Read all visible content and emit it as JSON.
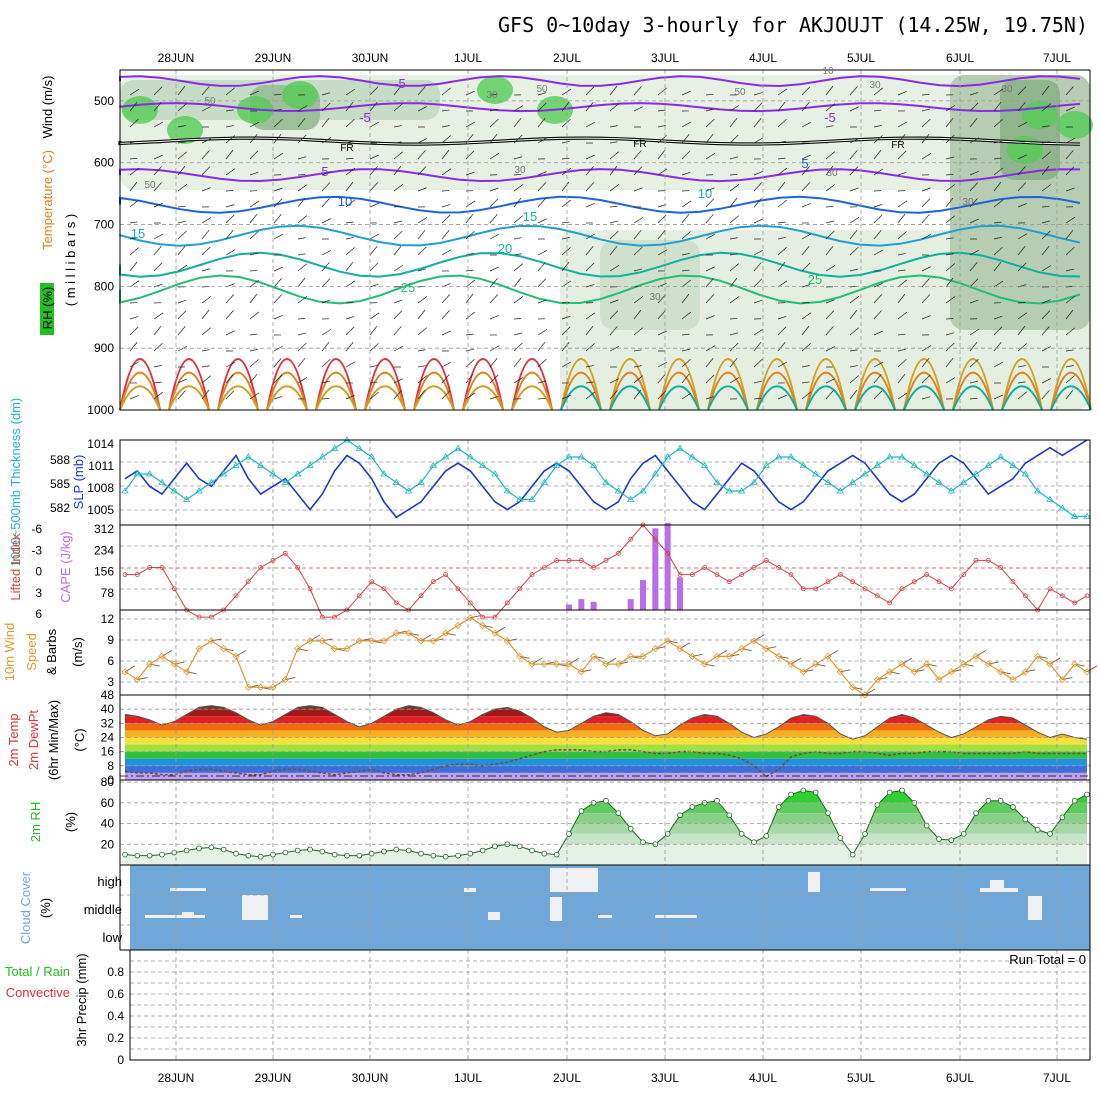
{
  "title": "GFS 0~10day 3-hourly for AKJOUJT (14.25W, 19.75N)",
  "dates": [
    "28JUN",
    "29JUN",
    "30JUN",
    "1JUL",
    "2JUL",
    "3JUL",
    "4JUL",
    "5JUL",
    "6JUL",
    "7JUL"
  ],
  "colors": {
    "temp_cold": "#8a2be2",
    "temp_blue": "#1e64d8",
    "temp_cyan": "#20a0d0",
    "temp_teal": "#10b0a0",
    "temp_green": "#20c070",
    "temp_orange": "#e08020",
    "temp_gold": "#d4a020",
    "temp_red": "#e03040",
    "slp": "#1a3acc",
    "thickness": "#20b8c0",
    "lifted": "#d94040",
    "cape": "#b86ee8",
    "wind": "#e09830",
    "rh": "#20c020",
    "cloud": "#6fa8d8",
    "precip_total": "#20c020",
    "precip_conv": "#e03030"
  },
  "chart_data": [
    {
      "type": "contour",
      "panel": "upper-air",
      "ylabel_parts": [
        "RH (%)",
        "Temperature (°C)",
        "Wind (m/s)",
        "( m i l l i b a r s )"
      ],
      "y_ticks": [
        "500",
        "600",
        "700",
        "800",
        "900",
        "1000"
      ],
      "ylim": [
        450,
        1000
      ],
      "temp_labels": [
        "-5",
        "-5",
        "-5",
        "5",
        "5",
        "10",
        "10",
        "15",
        "15",
        "20",
        "25",
        "25"
      ],
      "freezing_labels": [
        "FR",
        "FR",
        "FR"
      ],
      "rh_labels": [
        "50",
        "50",
        "30",
        "30",
        "50",
        "30",
        "30",
        "10",
        "30",
        "30",
        "50",
        "30"
      ],
      "isotherms": [
        {
          "label": "-5",
          "hpa": 510
        },
        {
          "label": "5",
          "hpa": 620
        },
        {
          "label": "10",
          "hpa": 668
        },
        {
          "label": "15",
          "hpa": 718
        },
        {
          "label": "20",
          "hpa": 765
        },
        {
          "label": "25",
          "hpa": 805
        }
      ],
      "freezing_level_hpa": 565
    },
    {
      "type": "line",
      "panel": "slp-thickness",
      "series": [
        {
          "name": "SLP (mb)",
          "axis": "left",
          "ticks": [
            "1014",
            "1011",
            "1008",
            "1005"
          ],
          "ylim": [
            1003,
            1014
          ],
          "values": [
            1009,
            1010,
            1008,
            1007,
            1009,
            1011,
            1009,
            1008,
            1010,
            1012,
            1009,
            1007,
            1008,
            1009,
            1007,
            1005,
            1007,
            1010,
            1012,
            1011,
            1009,
            1006,
            1004,
            1005,
            1006,
            1008,
            1010,
            1011,
            1010,
            1008,
            1006,
            1005,
            1006,
            1008,
            1010,
            1011,
            1010,
            1008,
            1006,
            1005,
            1006,
            1009,
            1011,
            1012,
            1010,
            1008,
            1006,
            1005,
            1007,
            1009,
            1011,
            1010,
            1008,
            1006,
            1005,
            1006,
            1008,
            1010,
            1011,
            1012,
            1011,
            1009,
            1007,
            1006,
            1007,
            1009,
            1011,
            1012,
            1011,
            1009,
            1007,
            1008,
            1009,
            1011,
            1012,
            1013,
            1012,
            1013,
            1014
          ]
        },
        {
          "name": "1000~500mb Thickness (dm)",
          "axis": "right",
          "ticks": [
            "588",
            "585",
            "582"
          ],
          "ylim": [
            580,
            590
          ],
          "values": [
            584,
            586,
            586,
            585,
            584,
            583,
            584,
            585,
            586,
            587,
            588,
            587,
            586,
            585,
            586,
            587,
            588,
            589,
            590,
            589,
            588,
            586,
            585,
            584,
            585,
            587,
            588,
            589,
            588,
            587,
            586,
            584,
            583,
            583,
            585,
            587,
            588,
            588,
            587,
            585,
            584,
            583,
            584,
            586,
            588,
            589,
            588,
            587,
            585,
            584,
            584,
            585,
            587,
            588,
            588,
            587,
            586,
            585,
            584,
            585,
            586,
            587,
            588,
            588,
            587,
            586,
            585,
            584,
            585,
            586,
            587,
            588,
            587,
            586,
            584,
            583,
            582,
            581,
            581
          ]
        }
      ]
    },
    {
      "type": "bar+line",
      "panel": "lifted-cape",
      "lifted_ticks": [
        "-6",
        "-3",
        "0",
        "3",
        "6"
      ],
      "cape_ticks": [
        "312",
        "234",
        "156",
        "78"
      ],
      "lifted_ylabel": "Lifted Index",
      "cape_ylabel": "CAPE (J/kg)",
      "lifted_values": [
        1,
        1,
        0,
        0,
        3,
        6,
        7,
        7,
        6,
        4,
        2,
        0,
        -1,
        -2,
        0,
        3,
        7,
        7,
        6,
        4,
        2,
        3,
        5,
        6,
        4,
        2,
        1,
        3,
        5,
        7,
        7,
        5,
        3,
        1,
        0,
        -1,
        -1,
        -1,
        0,
        -1,
        -2,
        -4,
        -6,
        -4,
        -2,
        1,
        1,
        0,
        1,
        2,
        1,
        0,
        -1,
        0,
        1,
        3,
        3,
        2,
        1,
        2,
        3,
        4,
        5,
        3,
        2,
        1,
        2,
        3,
        1,
        -1,
        -1,
        0,
        2,
        4,
        6,
        3,
        4,
        5,
        4
      ],
      "cape_values": [
        0,
        0,
        0,
        0,
        0,
        0,
        0,
        0,
        0,
        0,
        0,
        0,
        0,
        0,
        0,
        0,
        0,
        0,
        0,
        0,
        0,
        0,
        0,
        0,
        0,
        0,
        0,
        0,
        0,
        0,
        0,
        0,
        0,
        0,
        0,
        0,
        20,
        40,
        30,
        0,
        0,
        40,
        110,
        300,
        320,
        120,
        0,
        0,
        0,
        0,
        0,
        0,
        0,
        0,
        0,
        0,
        0,
        0,
        0,
        0,
        0,
        0,
        0,
        0,
        0,
        0,
        0,
        0,
        0,
        0,
        0,
        0,
        0,
        0,
        0,
        0,
        0,
        0,
        0
      ]
    },
    {
      "type": "line",
      "panel": "wind10m",
      "ylabel_parts": [
        "10m Wind",
        "Speed",
        "& Barbs",
        "(m/s)"
      ],
      "ticks": [
        "12",
        "9",
        "6",
        "3"
      ],
      "ylim": [
        2,
        13
      ],
      "values": [
        5,
        4,
        6,
        7,
        6,
        5,
        8,
        9,
        8,
        7,
        3,
        3,
        3,
        4,
        8,
        9,
        9,
        8,
        8,
        9,
        9,
        9,
        10,
        10,
        9,
        9,
        10,
        11,
        12,
        11,
        10,
        9,
        7,
        6,
        6,
        6,
        6,
        5,
        7,
        6,
        6,
        7,
        7,
        8,
        9,
        8,
        7,
        6,
        7,
        7,
        8,
        9,
        8,
        7,
        6,
        5,
        6,
        7,
        5,
        3,
        2,
        4,
        5,
        6,
        5,
        6,
        4,
        5,
        6,
        7,
        6,
        5,
        4,
        5,
        7,
        6,
        4,
        6,
        5
      ]
    },
    {
      "type": "area",
      "panel": "temperature",
      "ylabel_parts": [
        "2m Temp",
        "2m DewPt",
        "(6hr Min/Max)",
        "(°C)"
      ],
      "ticks": [
        "48",
        "40",
        "32",
        "24",
        "16",
        "8",
        "0"
      ],
      "ylim": [
        0,
        48
      ],
      "temp_values": [
        37,
        36,
        34,
        31,
        33,
        37,
        41,
        42,
        41,
        38,
        34,
        31,
        33,
        37,
        41,
        42,
        41,
        37,
        33,
        30,
        32,
        36,
        40,
        42,
        41,
        38,
        34,
        31,
        33,
        37,
        40,
        41,
        39,
        35,
        30,
        27,
        28,
        32,
        36,
        38,
        37,
        33,
        28,
        25,
        26,
        31,
        35,
        37,
        36,
        32,
        27,
        24,
        26,
        30,
        35,
        37,
        36,
        32,
        26,
        23,
        25,
        30,
        35,
        37,
        35,
        31,
        27,
        24,
        26,
        30,
        34,
        36,
        35,
        31,
        27,
        24,
        26,
        24,
        23
      ],
      "dew_values": [
        5,
        4,
        4,
        3,
        3,
        5,
        6,
        6,
        5,
        4,
        3,
        3,
        5,
        6,
        6,
        5,
        4,
        3,
        4,
        5,
        6,
        4,
        3,
        3,
        4,
        6,
        8,
        9,
        9,
        8,
        9,
        10,
        12,
        14,
        16,
        17,
        17,
        17,
        16,
        16,
        17,
        17,
        16,
        15,
        15,
        16,
        16,
        15,
        15,
        14,
        12,
        8,
        2,
        6,
        13,
        15,
        16,
        15,
        15,
        16,
        16,
        15,
        14,
        15,
        15,
        16,
        16,
        16,
        15,
        15,
        15,
        15,
        15,
        16,
        15,
        15,
        15,
        15,
        15
      ]
    },
    {
      "type": "area",
      "panel": "rh2m",
      "ylabel_parts": [
        "2m RH",
        "(%)"
      ],
      "ticks": [
        "80",
        "60",
        "40",
        "20"
      ],
      "ylim": [
        0,
        82
      ],
      "values": [
        10,
        9,
        9,
        10,
        12,
        14,
        16,
        17,
        15,
        11,
        9,
        8,
        10,
        12,
        14,
        15,
        13,
        10,
        9,
        9,
        11,
        13,
        15,
        14,
        11,
        9,
        8,
        9,
        11,
        14,
        18,
        20,
        18,
        14,
        11,
        10,
        30,
        52,
        60,
        62,
        50,
        35,
        22,
        20,
        30,
        48,
        56,
        60,
        62,
        48,
        30,
        22,
        28,
        56,
        68,
        72,
        70,
        50,
        26,
        10,
        30,
        58,
        70,
        72,
        60,
        38,
        25,
        24,
        30,
        50,
        62,
        62,
        56,
        44,
        34,
        30,
        46,
        62,
        68
      ]
    },
    {
      "type": "heatmap",
      "panel": "cloud",
      "ylabel_parts": [
        "Cloud Cover",
        "(%)"
      ],
      "levels": [
        "high",
        "middle",
        "low"
      ]
    },
    {
      "type": "bar",
      "panel": "precip",
      "ylabel_parts": [
        "Total / Rain",
        "Convective",
        "3hr Precip (mm)"
      ],
      "ticks": [
        "0.8",
        "0.6",
        "0.4",
        "0.2",
        "0"
      ],
      "ylim": [
        0,
        1
      ],
      "run_total_label": "Run Total = 0",
      "values": []
    }
  ]
}
